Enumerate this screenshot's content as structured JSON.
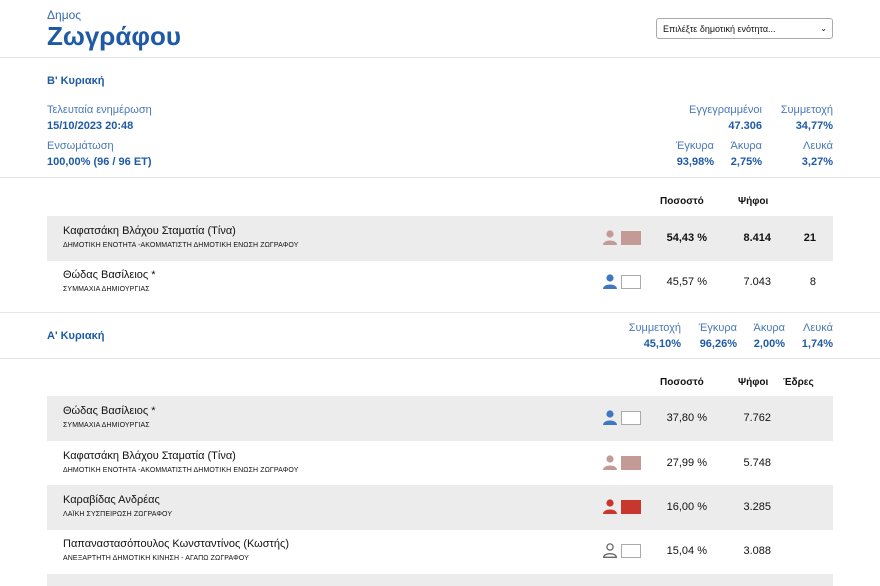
{
  "header": {
    "kicker": "Δημος",
    "title": "Ζωγράφου",
    "select_placeholder": "Επιλέξτε δημοτική ενότητα..."
  },
  "second_round": {
    "title": "Β' Κυριακή",
    "last_update_label": "Τελευταία ενημέρωση",
    "last_update_value": "15/10/2023 20:48",
    "integration_label": "Ενσωμάτωση",
    "integration_value": "100,00% (96 / 96 ΕΤ)",
    "registered_label": "Εγγεγραμμένοι",
    "registered_value": "47.306",
    "turnout_label": "Συμμετοχή",
    "turnout_value": "34,77%",
    "valid_label": "Έγκυρα",
    "valid_value": "93,98%",
    "invalid_label": "Άκυρα",
    "invalid_value": "2,75%",
    "blank_label": "Λευκά",
    "blank_value": "3,27%",
    "col_percent": "Ποσοστό",
    "col_votes": "Ψήφοι",
    "rows": [
      {
        "name": "Καφατσάκη Βλάχου Σταματία (Τίνα)",
        "party": "ΔΗΜΟΤΙΚΗ ΕΝΟΤΗΤΑ -ΑΚΟΜΜΑΤΙΣΤΗ ΔΗΜΟΤΙΚΗ ΕΝΩΣΗ ΖΩΓΡΑΦΟΥ",
        "percent": "54,43 %",
        "votes": "8.414",
        "seats": "21",
        "color": "#c49a96",
        "person_color": "#c49a96"
      },
      {
        "name": "Θώδας Βασίλειος *",
        "party": "ΣΥΜΜΑΧΙΑ ΔΗΜΙΟΥΡΓΙΑΣ",
        "percent": "45,57 %",
        "votes": "7.043",
        "seats": "8",
        "color": "#ffffff",
        "person_color": "#3f78c0"
      }
    ]
  },
  "first_round": {
    "title": "Α' Κυριακή",
    "turnout_label": "Συμμετοχή",
    "turnout_value": "45,10%",
    "valid_label": "Έγκυρα",
    "valid_value": "96,26%",
    "invalid_label": "Άκυρα",
    "invalid_value": "2,00%",
    "blank_label": "Λευκά",
    "blank_value": "1,74%",
    "col_percent": "Ποσοστό",
    "col_votes": "Ψήφοι",
    "col_seats": "Έδρες",
    "rows": [
      {
        "name": "Θώδας Βασίλειος *",
        "party": "ΣΥΜΜΑΧΙΑ ΔΗΜΙΟΥΡΓΙΑΣ",
        "percent": "37,80 %",
        "votes": "7.762",
        "color": "#ffffff",
        "person_color": "#3f78c0"
      },
      {
        "name": "Καφατσάκη Βλάχου Σταματία (Τίνα)",
        "party": "ΔΗΜΟΤΙΚΗ ΕΝΟΤΗΤΑ -ΑΚΟΜΜΑΤΙΣΤΗ ΔΗΜΟΤΙΚΗ ΕΝΩΣΗ ΖΩΓΡΑΦΟΥ",
        "percent": "27,99 %",
        "votes": "5.748",
        "color": "#c49a96",
        "person_color": "#c49a96"
      },
      {
        "name": "Καραβίδας Ανδρέας",
        "party": "ΛΑΪΚΗ ΣΥΣΠΕΙΡΩΣΗ ΖΩΓΡΑΦΟΥ",
        "percent": "16,00 %",
        "votes": "3.285",
        "color": "#c8372d",
        "person_color": "#c8372d"
      },
      {
        "name": "Παπαναστασόπουλος Κωνσταντίνος (Κωστής)",
        "party": "ΑΝΕΞΑΡΤΗΤΗ ΔΗΜΟΤΙΚΗ ΚΙΝΗΣΗ - ΑΓΑΠΩ ΖΩΓΡΑΦΟΥ",
        "percent": "15,04 %",
        "votes": "3.088",
        "color": "#ffffff",
        "person_color": "outline"
      }
    ]
  }
}
